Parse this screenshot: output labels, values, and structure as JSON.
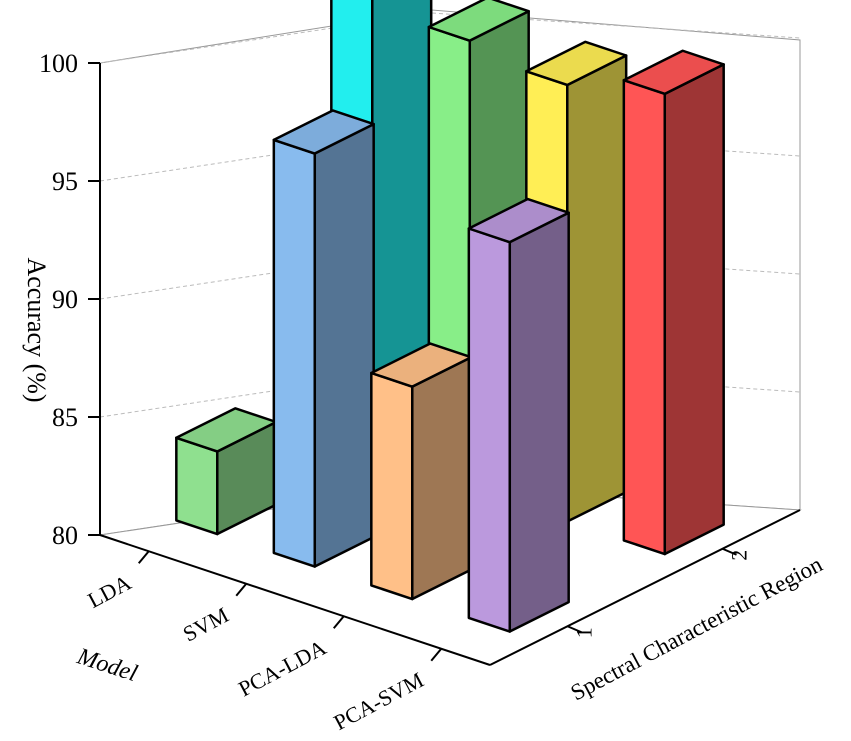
{
  "chart_data": {
    "type": "bar",
    "subtype": "3d-bar",
    "title": "",
    "xlabel": "Model",
    "ylabel": "Spectral Characteristic Region",
    "zlabel": "Accuracy (%)",
    "models": [
      "LDA",
      "SVM",
      "PCA-LDA",
      "PCA-SVM"
    ],
    "regions": [
      "1",
      "2"
    ],
    "zlim": [
      80,
      100
    ],
    "zticks": [
      "80",
      "85",
      "90",
      "95",
      "100"
    ],
    "grid": true,
    "legend": "none",
    "series": [
      {
        "region": "1",
        "values": [
          83.5,
          97.5,
          89.0,
          96.5
        ]
      },
      {
        "region": "2",
        "values": [
          100.0,
          99.0,
          98.5,
          99.5
        ]
      }
    ],
    "colors": {
      "LDA|1": "#8fe08f",
      "SVM|1": "#88bbee",
      "PCA-LDA|1": "#ffc088",
      "PCA-SVM|1": "#bb99dd",
      "LDA|2": "#22eeee",
      "SVM|2": "#88ee88",
      "PCA-LDA|2": "#ffee55",
      "PCA-SVM|2": "#ff5555"
    }
  }
}
